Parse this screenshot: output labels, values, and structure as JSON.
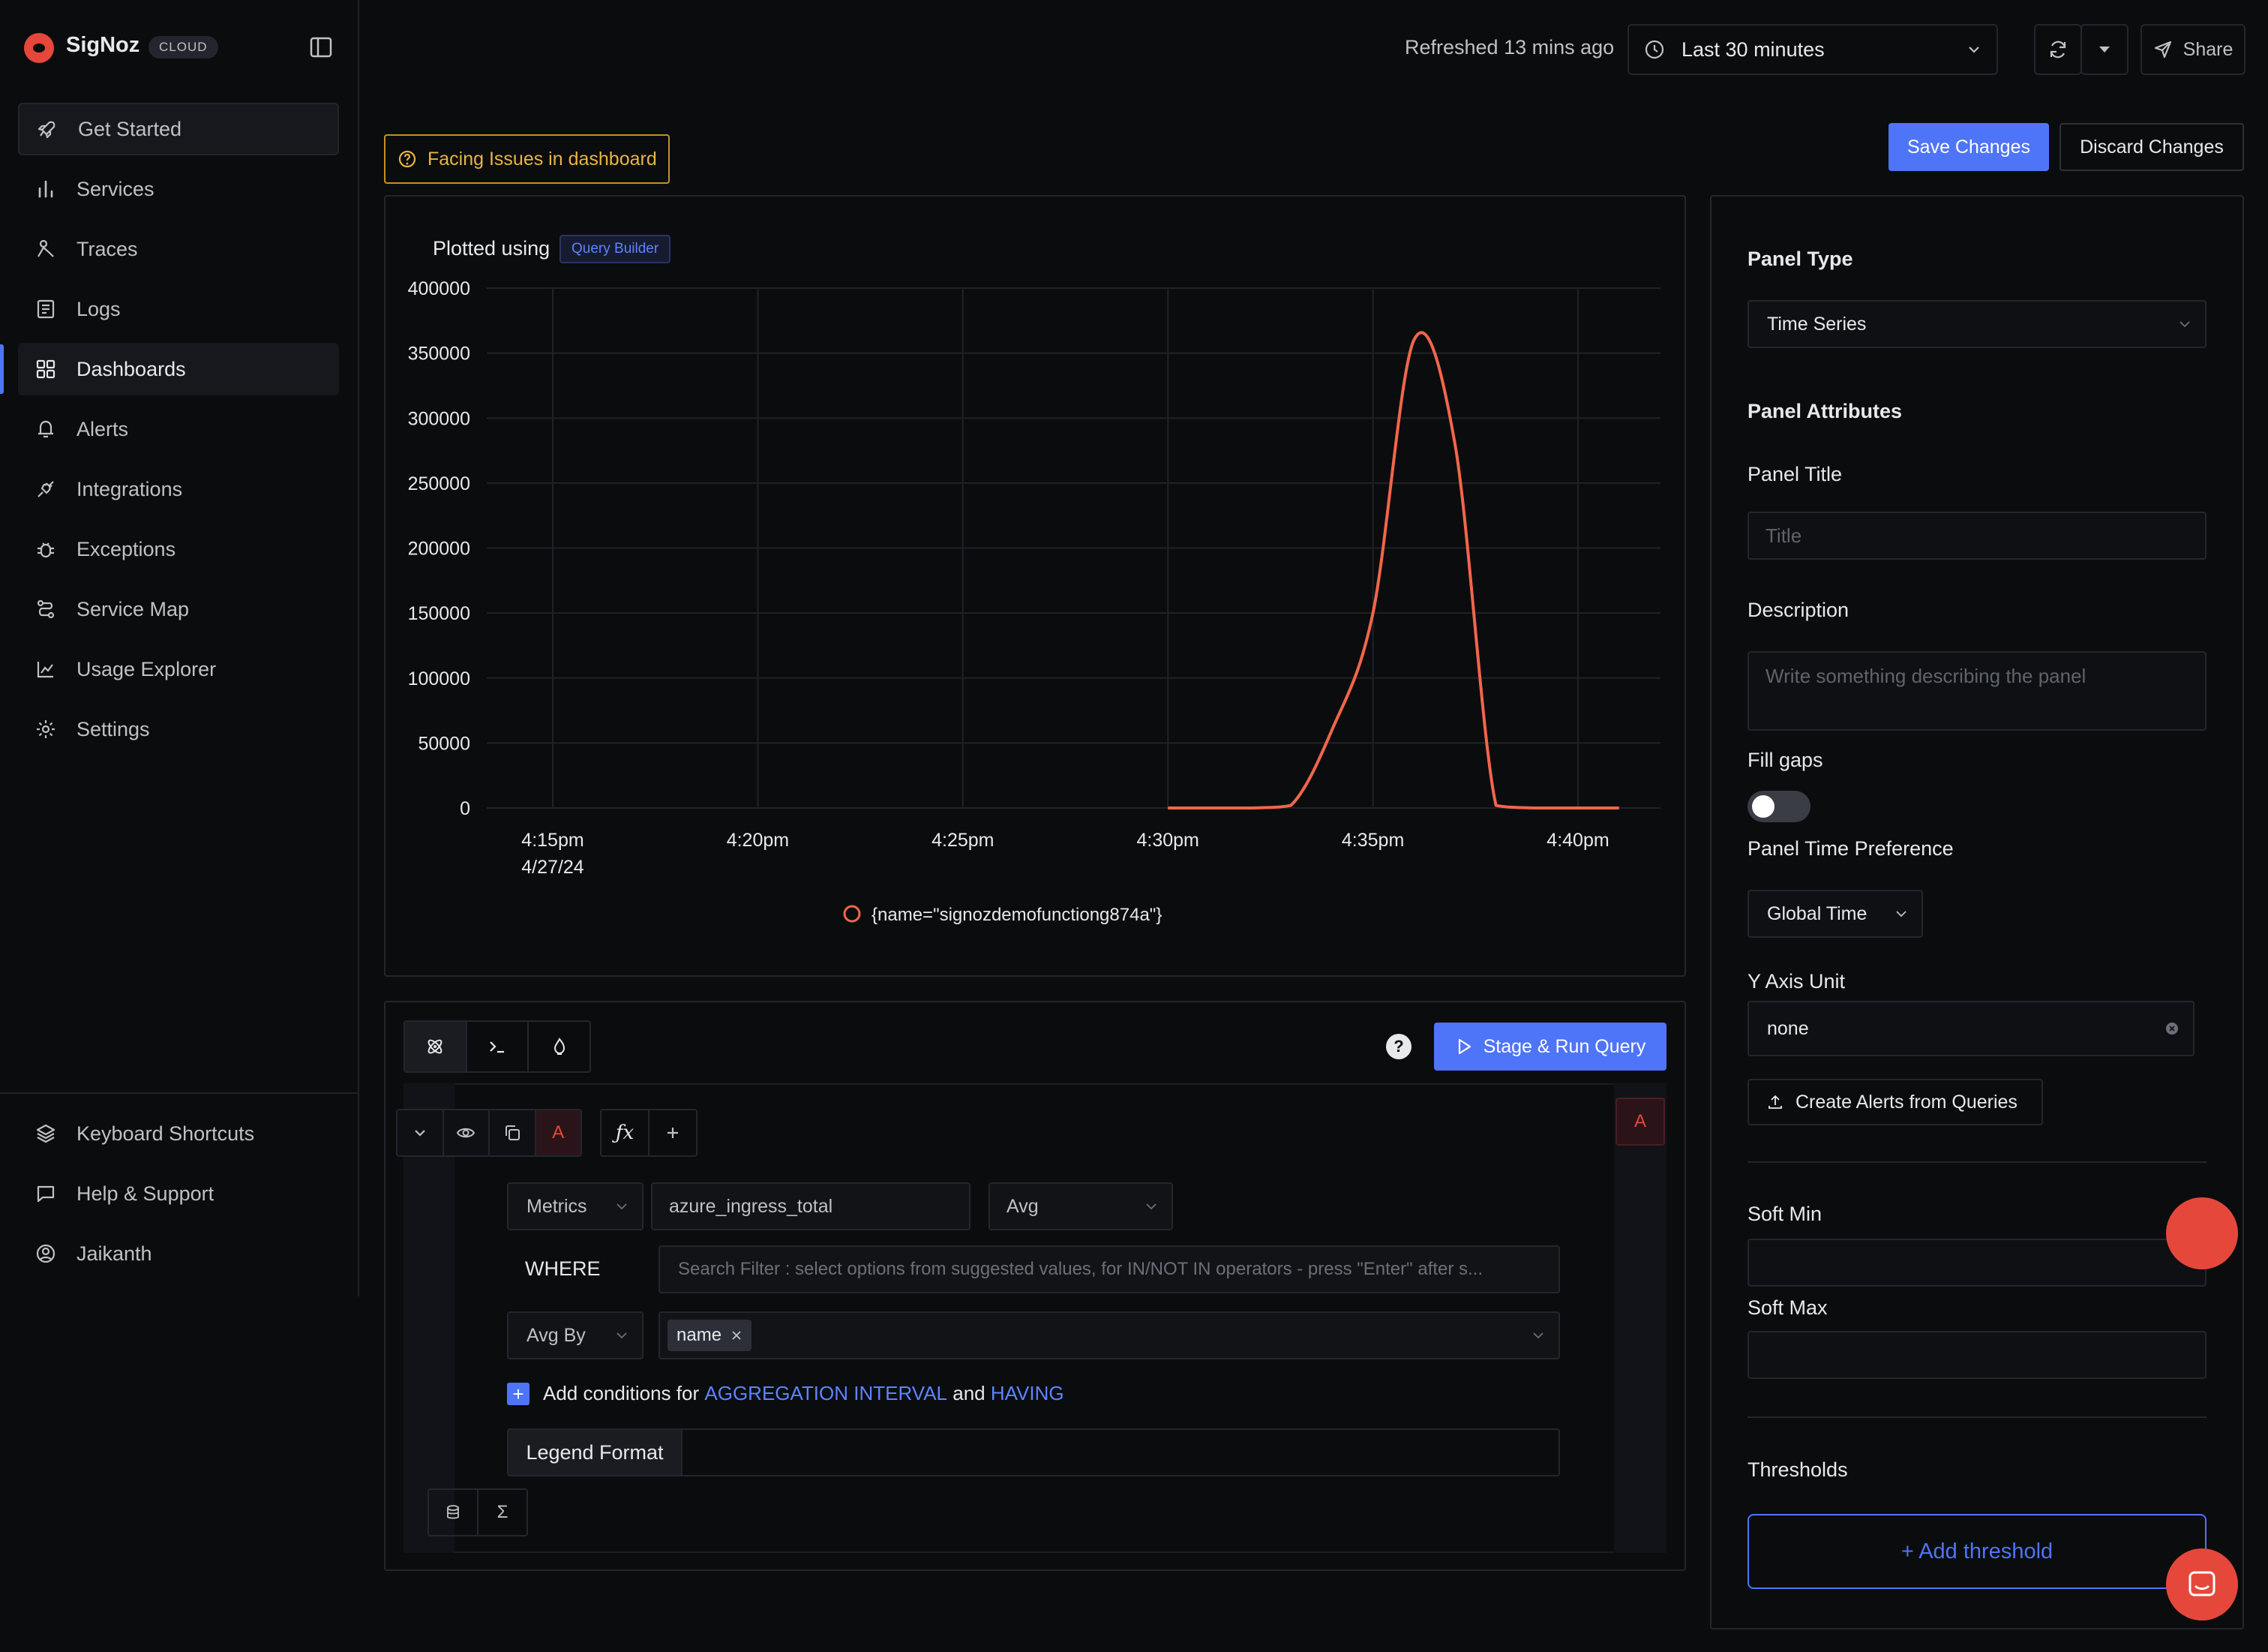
{
  "sidebar": {
    "brand": "SigNoz",
    "badge": "CLOUD",
    "items": [
      {
        "label": "Get Started"
      },
      {
        "label": "Services"
      },
      {
        "label": "Traces"
      },
      {
        "label": "Logs"
      },
      {
        "label": "Dashboards"
      },
      {
        "label": "Alerts"
      },
      {
        "label": "Integrations"
      },
      {
        "label": "Exceptions"
      },
      {
        "label": "Service Map"
      },
      {
        "label": "Usage Explorer"
      },
      {
        "label": "Settings"
      }
    ],
    "active": "Dashboards",
    "bottom": [
      {
        "label": "Keyboard Shortcuts"
      },
      {
        "label": "Help & Support"
      },
      {
        "label": "Jaikanth"
      }
    ]
  },
  "header": {
    "refreshed": "Refreshed 13 mins ago",
    "time_range": "Last 30 minutes",
    "share": "Share"
  },
  "toolbar": {
    "facing_issues": "Facing Issues in dashboard",
    "save": "Save Changes",
    "discard": "Discard Changes"
  },
  "chart_panel": {
    "plotted_using": "Plotted using",
    "query_builder_badge": "Query Builder"
  },
  "chart_data": {
    "type": "line",
    "x_labels": [
      "4:15pm",
      "4:20pm",
      "4:25pm",
      "4:30pm",
      "4:35pm",
      "4:40pm"
    ],
    "x_date_label": "4/27/24",
    "y_ticks": [
      0,
      50000,
      100000,
      150000,
      200000,
      250000,
      300000,
      350000,
      400000
    ],
    "ylim": [
      0,
      400000
    ],
    "series": [
      {
        "name": "{name=\"signozdemofunctiong874a\"}",
        "color": "#f2664b",
        "points": [
          [
            "4:30pm",
            0
          ],
          [
            "4:31pm",
            0
          ],
          [
            "4:32pm",
            0
          ],
          [
            "4:33pm",
            2000
          ],
          [
            "4:34pm",
            60000
          ],
          [
            "4:35pm",
            150000
          ],
          [
            "4:36pm",
            360000
          ],
          [
            "4:37pm",
            280000
          ],
          [
            "4:38pm",
            2000
          ],
          [
            "4:39pm",
            0
          ],
          [
            "4:40pm",
            0
          ],
          [
            "4:41pm",
            0
          ]
        ]
      }
    ]
  },
  "query": {
    "stage_run": "Stage & Run Query",
    "query_letter": "A",
    "data_source": "Metrics",
    "metric": "azure_ingress_total",
    "aggregate": "Avg",
    "where_label": "WHERE",
    "where_placeholder": "Search Filter : select options from suggested values, for IN/NOT IN operators - press \"Enter\" after s...",
    "group_by_label": "Avg By",
    "group_by_chip": "name",
    "add_conditions_prefix": "Add conditions for",
    "aggregation_interval": "AGGREGATION INTERVAL",
    "and_text": "and",
    "having": "HAVING",
    "legend_format": "Legend Format"
  },
  "settings": {
    "panel_type_heading": "Panel Type",
    "panel_type": "Time Series",
    "panel_attributes_heading": "Panel Attributes",
    "panel_title_label": "Panel Title",
    "panel_title_placeholder": "Title",
    "description_label": "Description",
    "description_placeholder": "Write something describing the  panel",
    "fill_gaps_label": "Fill gaps",
    "fill_gaps_on": false,
    "time_pref_label": "Panel Time Preference",
    "time_pref": "Global Time",
    "y_axis_label": "Y Axis Unit",
    "y_axis_value": "none",
    "create_alerts": "Create Alerts from Queries",
    "soft_min_label": "Soft Min",
    "soft_max_label": "Soft Max",
    "thresholds_label": "Thresholds",
    "add_threshold": "+ Add threshold"
  }
}
